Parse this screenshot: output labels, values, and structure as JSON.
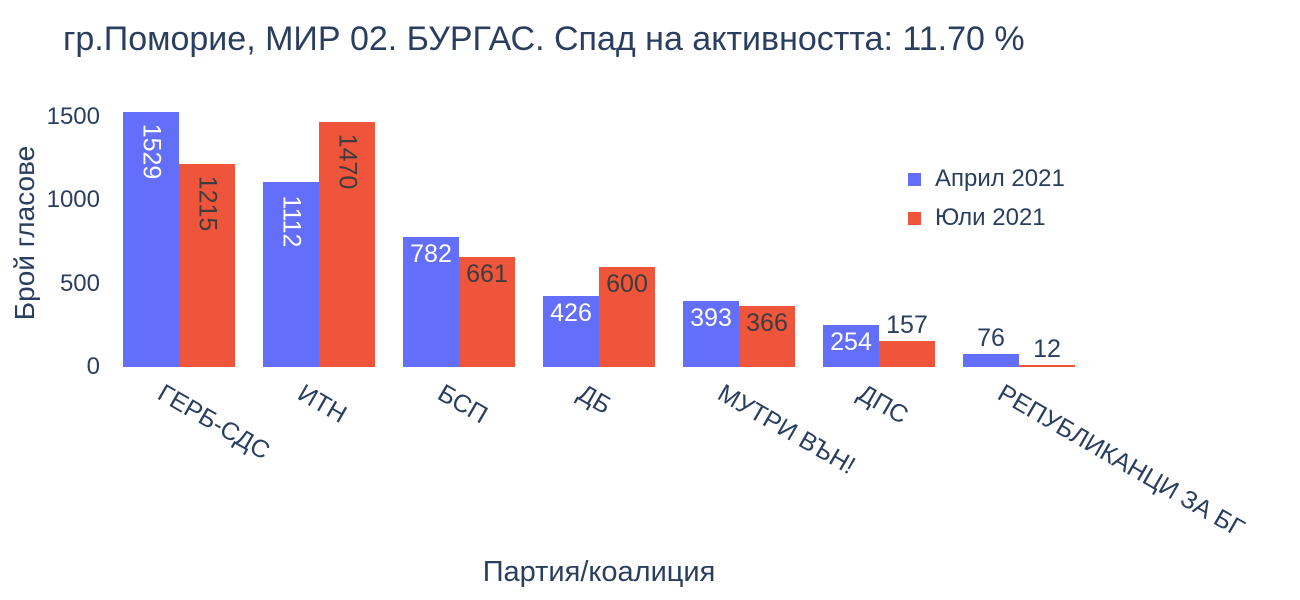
{
  "chart_data": {
    "type": "bar",
    "title": "гр.Поморие, МИР 02. БУРГАС. Спад на активността: 11.70 %",
    "xlabel": "Партия/коалиция",
    "ylabel": "Брой гласове",
    "categories": [
      "ГЕРБ-СДС",
      "ИТН",
      "БСП",
      "ДБ",
      "МУТРИ ВЪН!",
      "ДПС",
      "РЕПУБЛИКАНЦИ ЗА БГ"
    ],
    "series": [
      {
        "name": "Април 2021",
        "color": "#636EFA",
        "inside_label_color": "#ffffff",
        "values": [
          1529,
          1112,
          782,
          426,
          393,
          254,
          76
        ]
      },
      {
        "name": "Юли 2021",
        "color": "#EF553B",
        "inside_label_color": "#3d3d3d",
        "values": [
          1215,
          1470,
          661,
          600,
          366,
          157,
          12
        ]
      }
    ],
    "yticks": [
      0,
      500,
      1000,
      1500
    ],
    "ylim": [
      0,
      1600
    ],
    "grid": false,
    "bar_value_labels": true,
    "x_tick_angle_deg": 30,
    "legend_position": "inside-top-right",
    "text_color": "#2a3f5f",
    "background_color": "#ffffff"
  }
}
